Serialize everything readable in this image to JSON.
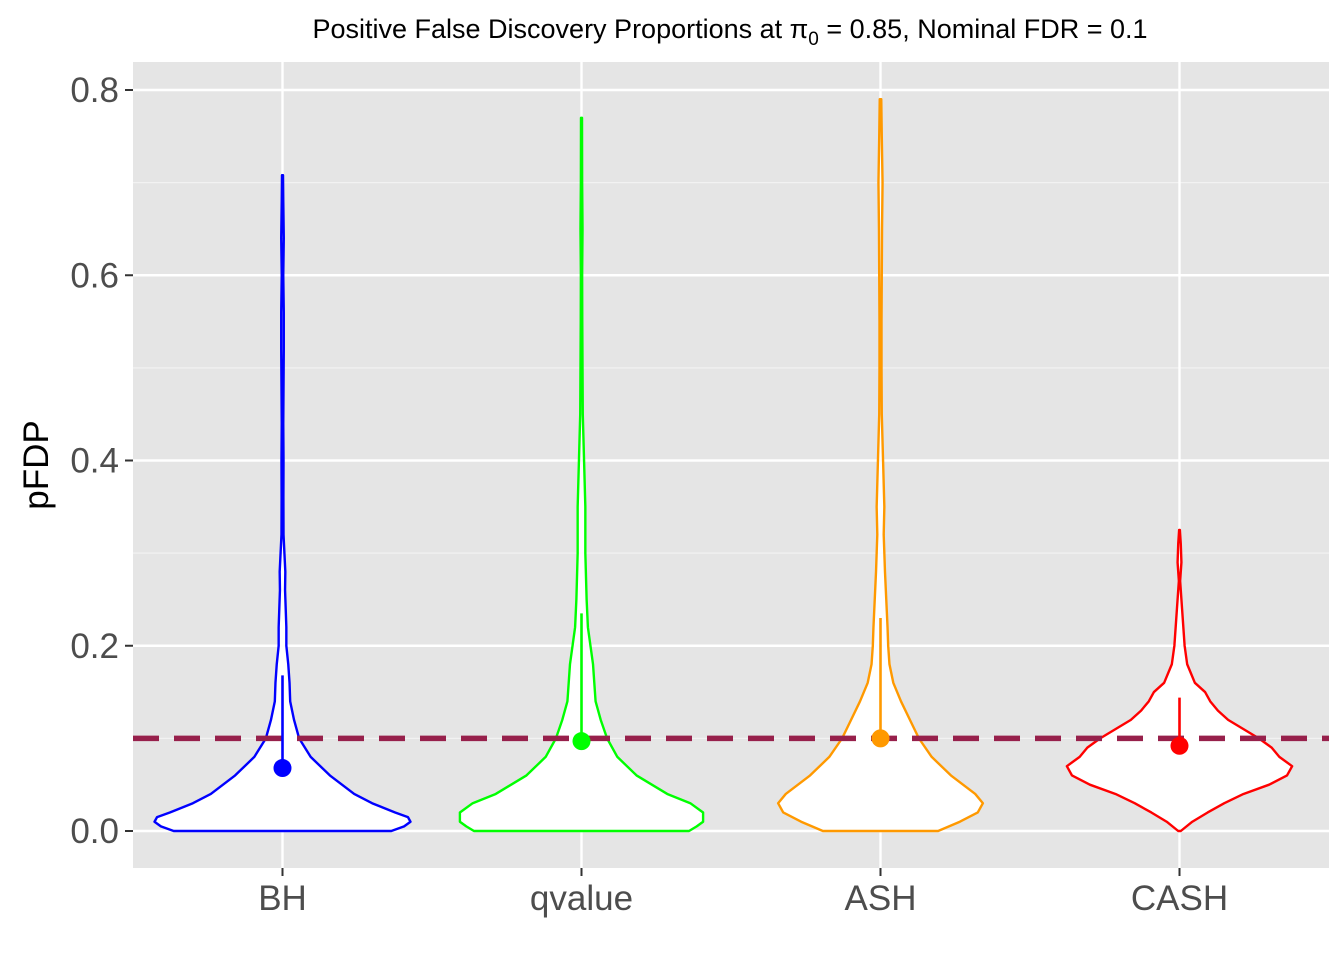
{
  "chart_data": {
    "type": "violin",
    "title": {
      "prefix": "Positive False Discovery Proportions at ",
      "symbol": "π",
      "subscript": "0",
      "suffix": " = 0.85, Nominal FDR = 0.1"
    },
    "xlabel": "",
    "ylabel": "pFDP",
    "ylim": [
      -0.04,
      0.83
    ],
    "y_ticks": [
      0.0,
      0.2,
      0.4,
      0.6,
      0.8
    ],
    "y_tick_labels": [
      "0.0",
      "0.2",
      "0.4",
      "0.6",
      "0.8"
    ],
    "grid": true,
    "reference_line": {
      "y": 0.1,
      "color": "#97204b",
      "style": "dashed"
    },
    "categories": [
      "BH",
      "qvalue",
      "ASH",
      "CASH"
    ],
    "series": [
      {
        "category": "BH",
        "color": "#0000ff",
        "point": 0.068,
        "line_range": [
          0.068,
          0.168
        ],
        "density": [
          [
            0.0,
            0.85
          ],
          [
            0.005,
            0.95
          ],
          [
            0.01,
            1.0
          ],
          [
            0.015,
            0.98
          ],
          [
            0.02,
            0.88
          ],
          [
            0.03,
            0.7
          ],
          [
            0.04,
            0.56
          ],
          [
            0.06,
            0.37
          ],
          [
            0.08,
            0.22
          ],
          [
            0.1,
            0.13
          ],
          [
            0.12,
            0.09
          ],
          [
            0.14,
            0.06
          ],
          [
            0.16,
            0.055
          ],
          [
            0.18,
            0.045
          ],
          [
            0.2,
            0.03
          ],
          [
            0.22,
            0.03
          ],
          [
            0.24,
            0.025
          ],
          [
            0.26,
            0.02
          ],
          [
            0.28,
            0.022
          ],
          [
            0.3,
            0.015
          ],
          [
            0.32,
            0.008
          ],
          [
            0.36,
            0.007
          ],
          [
            0.4,
            0.008
          ],
          [
            0.44,
            0.006
          ],
          [
            0.48,
            0.008
          ],
          [
            0.52,
            0.01
          ],
          [
            0.56,
            0.01
          ],
          [
            0.6,
            0.006
          ],
          [
            0.64,
            0.01
          ],
          [
            0.68,
            0.006
          ],
          [
            0.708,
            0.004
          ]
        ]
      },
      {
        "category": "qvalue",
        "color": "#00ff00",
        "point": 0.097,
        "line_range": [
          0.097,
          0.235
        ],
        "density": [
          [
            0.0,
            0.84
          ],
          [
            0.005,
            0.9
          ],
          [
            0.01,
            0.95
          ],
          [
            0.02,
            0.95
          ],
          [
            0.03,
            0.85
          ],
          [
            0.04,
            0.67
          ],
          [
            0.06,
            0.43
          ],
          [
            0.08,
            0.28
          ],
          [
            0.1,
            0.2
          ],
          [
            0.12,
            0.15
          ],
          [
            0.14,
            0.11
          ],
          [
            0.16,
            0.1
          ],
          [
            0.18,
            0.09
          ],
          [
            0.2,
            0.07
          ],
          [
            0.22,
            0.05
          ],
          [
            0.25,
            0.04
          ],
          [
            0.3,
            0.03
          ],
          [
            0.35,
            0.03
          ],
          [
            0.4,
            0.02
          ],
          [
            0.45,
            0.01
          ],
          [
            0.5,
            0.008
          ],
          [
            0.55,
            0.006
          ],
          [
            0.6,
            0.005
          ],
          [
            0.65,
            0.008
          ],
          [
            0.7,
            0.005
          ],
          [
            0.77,
            0.004
          ]
        ]
      },
      {
        "category": "ASH",
        "color": "#ff9900",
        "point": 0.1,
        "line_range": [
          0.1,
          0.23
        ],
        "density": [
          [
            0.0,
            0.45
          ],
          [
            0.01,
            0.62
          ],
          [
            0.02,
            0.76
          ],
          [
            0.03,
            0.8
          ],
          [
            0.04,
            0.74
          ],
          [
            0.06,
            0.55
          ],
          [
            0.08,
            0.4
          ],
          [
            0.1,
            0.3
          ],
          [
            0.12,
            0.23
          ],
          [
            0.14,
            0.16
          ],
          [
            0.16,
            0.1
          ],
          [
            0.18,
            0.07
          ],
          [
            0.2,
            0.06
          ],
          [
            0.22,
            0.055
          ],
          [
            0.25,
            0.045
          ],
          [
            0.28,
            0.035
          ],
          [
            0.3,
            0.03
          ],
          [
            0.32,
            0.025
          ],
          [
            0.35,
            0.03
          ],
          [
            0.4,
            0.02
          ],
          [
            0.45,
            0.01
          ],
          [
            0.5,
            0.008
          ],
          [
            0.55,
            0.008
          ],
          [
            0.6,
            0.01
          ],
          [
            0.65,
            0.012
          ],
          [
            0.7,
            0.016
          ],
          [
            0.75,
            0.01
          ],
          [
            0.79,
            0.006
          ]
        ]
      },
      {
        "category": "CASH",
        "color": "#ff0000",
        "point": 0.092,
        "line_range": [
          0.092,
          0.144
        ],
        "density": [
          [
            0.0,
            0.01
          ],
          [
            0.01,
            0.1
          ],
          [
            0.02,
            0.22
          ],
          [
            0.03,
            0.35
          ],
          [
            0.04,
            0.5
          ],
          [
            0.05,
            0.7
          ],
          [
            0.06,
            0.84
          ],
          [
            0.07,
            0.88
          ],
          [
            0.08,
            0.78
          ],
          [
            0.09,
            0.72
          ],
          [
            0.1,
            0.62
          ],
          [
            0.11,
            0.5
          ],
          [
            0.12,
            0.38
          ],
          [
            0.13,
            0.3
          ],
          [
            0.14,
            0.24
          ],
          [
            0.15,
            0.2
          ],
          [
            0.16,
            0.12
          ],
          [
            0.18,
            0.06
          ],
          [
            0.2,
            0.04
          ],
          [
            0.22,
            0.03
          ],
          [
            0.24,
            0.02
          ],
          [
            0.26,
            0.01
          ],
          [
            0.27,
            0.005
          ],
          [
            0.29,
            0.015
          ],
          [
            0.31,
            0.01
          ],
          [
            0.325,
            0.003
          ]
        ]
      }
    ]
  }
}
